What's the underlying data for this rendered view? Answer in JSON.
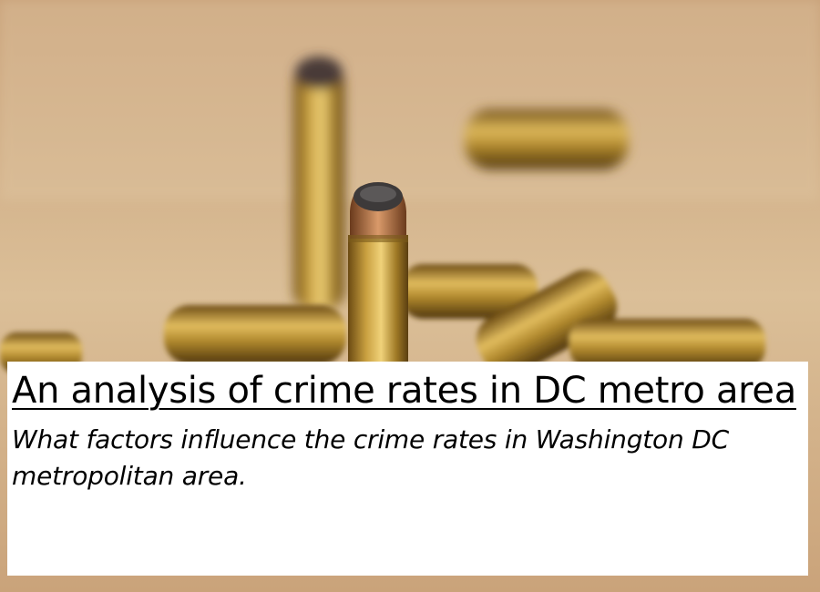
{
  "article": {
    "title": "An analysis of crime rates in DC metro area",
    "subtitle": "What factors influence the crime rates in Washington DC metropolitan area."
  },
  "hero_image": {
    "subject": "bullets-icon"
  }
}
